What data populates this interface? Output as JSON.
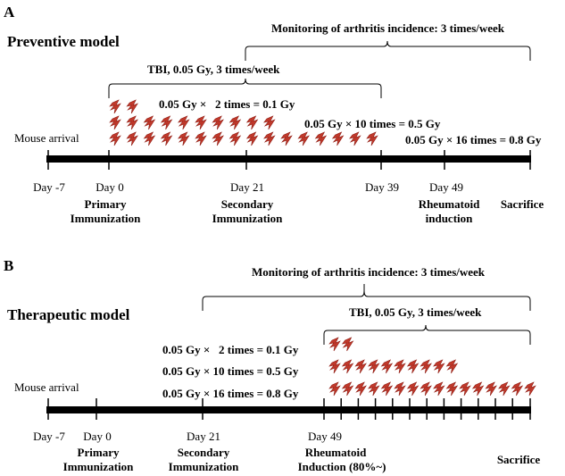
{
  "panel_a": {
    "letter": "A",
    "model_title": "Preventive model",
    "monitoring": "Monitoring of arthritis incidence: 3 times/week",
    "tbi": "TBI, 0.05 Gy, 3 times/week",
    "dose_2": "0.05 Gy ×   2 times = 0.1 Gy",
    "dose_10": "0.05 Gy × 10 times = 0.5 Gy",
    "dose_16": "0.05 Gy × 16 times = 0.8 Gy",
    "arrival": "Mouse arrival",
    "days": [
      "Day -7",
      "Day 0",
      "Day 21",
      "Day 39",
      "Day 49"
    ],
    "events": {
      "primary_1": "Primary",
      "primary_2": "Immunization",
      "secondary_1": "Secondary",
      "secondary_2": "Immunization",
      "rheum_1": "Rheumatoid",
      "rheum_2": "induction",
      "sacrifice": "Sacrifice"
    },
    "bolt_rows": [
      2,
      10,
      16
    ]
  },
  "panel_b": {
    "letter": "B",
    "model_title": "Therapeutic model",
    "monitoring": "Monitoring of arthritis incidence: 3 times/week",
    "tbi": "TBI, 0.05 Gy, 3 times/week",
    "dose_2": "0.05 Gy ×   2 times = 0.1 Gy",
    "dose_10": "0.05 Gy × 10 times = 0.5 Gy",
    "dose_16": "0.05 Gy × 16 times = 0.8 Gy",
    "arrival": "Mouse arrival",
    "days": [
      "Day -7",
      "Day 0",
      "Day 21",
      "Day 49"
    ],
    "events": {
      "primary_1": "Primary",
      "primary_2": "Immunization",
      "secondary_1": "Secondary",
      "secondary_2": "Immunization",
      "rheum_1": "Rheumatoid",
      "rheum_2": "Induction (80%~)",
      "sacrifice": "Sacrifice"
    },
    "bolt_rows": [
      2,
      10,
      16
    ]
  },
  "colors": {
    "bolt": "#c0392b",
    "bolt_dark": "#8e1b12",
    "line": "#000000"
  }
}
